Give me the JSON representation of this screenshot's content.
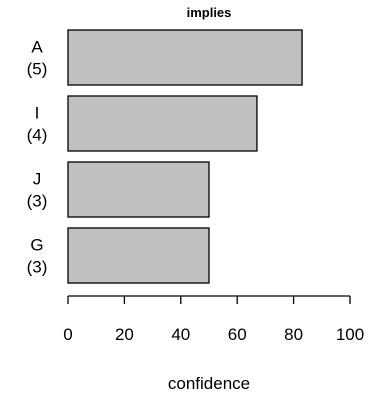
{
  "chart_data": {
    "type": "bar",
    "orientation": "horizontal",
    "title": "implies",
    "xlabel": "confidence",
    "ylabel": "",
    "xlim": [
      0,
      100
    ],
    "ticks": [
      "0",
      "20",
      "40",
      "60",
      "80",
      "100"
    ],
    "tick_values": [
      0,
      20,
      40,
      60,
      80,
      100
    ],
    "categories": [
      {
        "name": "A",
        "count": "(5)",
        "value": 83
      },
      {
        "name": "I",
        "count": "(4)",
        "value": 67
      },
      {
        "name": "J",
        "count": "(3)",
        "value": 50
      },
      {
        "name": "G",
        "count": "(3)",
        "value": 50
      }
    ],
    "bar_color": "#c0c0c0",
    "grid": false,
    "legend": "none"
  }
}
